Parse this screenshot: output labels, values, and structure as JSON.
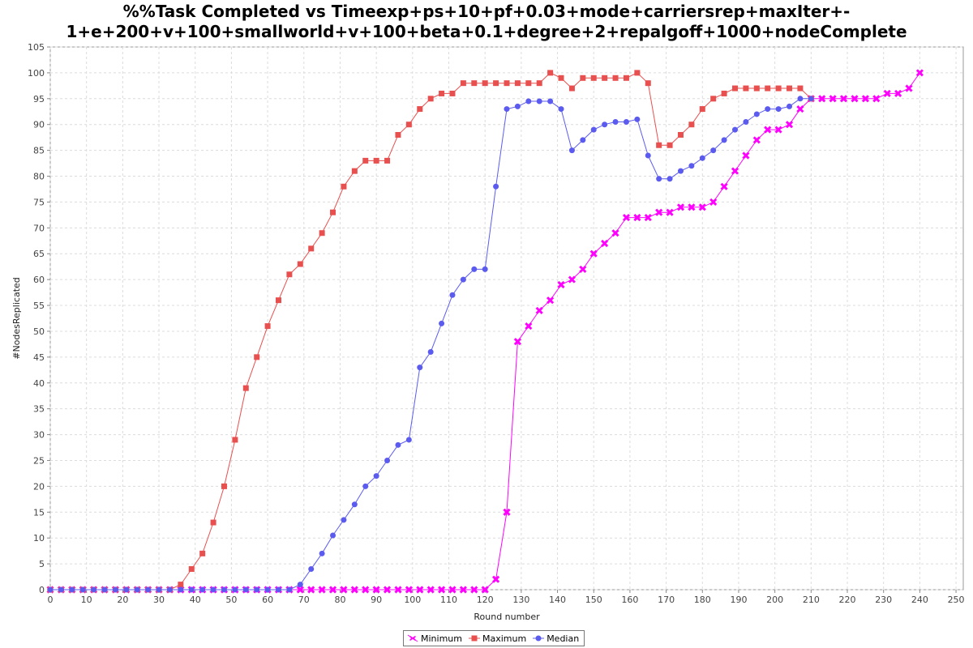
{
  "chart_data": {
    "type": "line",
    "title_line1": "%%Task Completed vs Timeexp+ps+10+pf+0.03+mode+carriersrep+maxIter+-",
    "title_line2": "1+e+200+v+100+smallworld+v+100+beta+0.1+degree+2+repalgoff+1000+nodeComplete",
    "xlabel": "Round number",
    "ylabel": "#NodesReplicated",
    "xlim": [
      0,
      252
    ],
    "ylim": [
      0,
      105
    ],
    "xticks": [
      0,
      10,
      20,
      30,
      40,
      50,
      60,
      70,
      80,
      90,
      100,
      110,
      120,
      130,
      140,
      150,
      160,
      170,
      180,
      190,
      200,
      210,
      220,
      230,
      240,
      250
    ],
    "yticks": [
      0,
      5,
      10,
      15,
      20,
      25,
      30,
      35,
      40,
      45,
      50,
      55,
      60,
      65,
      70,
      75,
      80,
      85,
      90,
      95,
      100,
      105
    ],
    "grid": true,
    "legend_position": "bottom-center",
    "series": [
      {
        "name": "Minimum",
        "color": "#ff00ff",
        "marker": "x",
        "points": [
          [
            0,
            0
          ],
          [
            3,
            0
          ],
          [
            6,
            0
          ],
          [
            9,
            0
          ],
          [
            12,
            0
          ],
          [
            15,
            0
          ],
          [
            18,
            0
          ],
          [
            21,
            0
          ],
          [
            24,
            0
          ],
          [
            27,
            0
          ],
          [
            30,
            0
          ],
          [
            33,
            0
          ],
          [
            36,
            0
          ],
          [
            39,
            0
          ],
          [
            42,
            0
          ],
          [
            45,
            0
          ],
          [
            48,
            0
          ],
          [
            51,
            0
          ],
          [
            54,
            0
          ],
          [
            57,
            0
          ],
          [
            60,
            0
          ],
          [
            63,
            0
          ],
          [
            66,
            0
          ],
          [
            69,
            0
          ],
          [
            72,
            0
          ],
          [
            75,
            0
          ],
          [
            78,
            0
          ],
          [
            81,
            0
          ],
          [
            84,
            0
          ],
          [
            87,
            0
          ],
          [
            90,
            0
          ],
          [
            93,
            0
          ],
          [
            96,
            0
          ],
          [
            99,
            0
          ],
          [
            102,
            0
          ],
          [
            105,
            0
          ],
          [
            108,
            0
          ],
          [
            111,
            0
          ],
          [
            114,
            0
          ],
          [
            117,
            0
          ],
          [
            120,
            0
          ],
          [
            123,
            2
          ],
          [
            126,
            15
          ],
          [
            129,
            48
          ],
          [
            132,
            51
          ],
          [
            135,
            54
          ],
          [
            138,
            56
          ],
          [
            141,
            59
          ],
          [
            144,
            60
          ],
          [
            147,
            62
          ],
          [
            150,
            65
          ],
          [
            153,
            67
          ],
          [
            156,
            69
          ],
          [
            159,
            72
          ],
          [
            162,
            72
          ],
          [
            165,
            72
          ],
          [
            168,
            73
          ],
          [
            171,
            73
          ],
          [
            174,
            74
          ],
          [
            177,
            74
          ],
          [
            180,
            74
          ],
          [
            183,
            75
          ],
          [
            186,
            78
          ],
          [
            189,
            81
          ],
          [
            192,
            84
          ],
          [
            195,
            87
          ],
          [
            198,
            89
          ],
          [
            201,
            89
          ],
          [
            204,
            90
          ],
          [
            207,
            93
          ],
          [
            210,
            95
          ],
          [
            213,
            95
          ],
          [
            216,
            95
          ],
          [
            219,
            95
          ],
          [
            222,
            95
          ],
          [
            225,
            95
          ],
          [
            228,
            95
          ],
          [
            231,
            96
          ],
          [
            234,
            96
          ],
          [
            237,
            97
          ],
          [
            240,
            100
          ]
        ]
      },
      {
        "name": "Maximum",
        "color": "#e8504f",
        "marker": "square",
        "points": [
          [
            0,
            0
          ],
          [
            3,
            0
          ],
          [
            6,
            0
          ],
          [
            9,
            0
          ],
          [
            12,
            0
          ],
          [
            15,
            0
          ],
          [
            18,
            0
          ],
          [
            21,
            0
          ],
          [
            24,
            0
          ],
          [
            27,
            0
          ],
          [
            30,
            0
          ],
          [
            33,
            0
          ],
          [
            36,
            1
          ],
          [
            39,
            4
          ],
          [
            42,
            7
          ],
          [
            45,
            13
          ],
          [
            48,
            20
          ],
          [
            51,
            29
          ],
          [
            54,
            39
          ],
          [
            57,
            45
          ],
          [
            60,
            51
          ],
          [
            63,
            56
          ],
          [
            66,
            61
          ],
          [
            69,
            63
          ],
          [
            72,
            66
          ],
          [
            75,
            69
          ],
          [
            78,
            73
          ],
          [
            81,
            78
          ],
          [
            84,
            81
          ],
          [
            87,
            83
          ],
          [
            90,
            83
          ],
          [
            93,
            83
          ],
          [
            96,
            88
          ],
          [
            99,
            90
          ],
          [
            102,
            93
          ],
          [
            105,
            95
          ],
          [
            108,
            96
          ],
          [
            111,
            96
          ],
          [
            114,
            98
          ],
          [
            117,
            98
          ],
          [
            120,
            98
          ],
          [
            123,
            98
          ],
          [
            126,
            98
          ],
          [
            129,
            98
          ],
          [
            132,
            98
          ],
          [
            135,
            98
          ],
          [
            138,
            100
          ],
          [
            141,
            99
          ],
          [
            144,
            97
          ],
          [
            147,
            99
          ],
          [
            150,
            99
          ],
          [
            153,
            99
          ],
          [
            156,
            99
          ],
          [
            159,
            99
          ],
          [
            162,
            100
          ],
          [
            165,
            98
          ],
          [
            168,
            86
          ],
          [
            171,
            86
          ],
          [
            174,
            88
          ],
          [
            177,
            90
          ],
          [
            180,
            93
          ],
          [
            183,
            95
          ],
          [
            186,
            96
          ],
          [
            189,
            97
          ],
          [
            192,
            97
          ],
          [
            195,
            97
          ],
          [
            198,
            97
          ],
          [
            201,
            97
          ],
          [
            204,
            97
          ],
          [
            207,
            97
          ],
          [
            210,
            95
          ]
        ]
      },
      {
        "name": "Median",
        "color": "#5b5bef",
        "marker": "circle",
        "points": [
          [
            0,
            0
          ],
          [
            3,
            0
          ],
          [
            6,
            0
          ],
          [
            9,
            0
          ],
          [
            12,
            0
          ],
          [
            15,
            0
          ],
          [
            18,
            0
          ],
          [
            21,
            0
          ],
          [
            24,
            0
          ],
          [
            27,
            0
          ],
          [
            30,
            0
          ],
          [
            33,
            0
          ],
          [
            36,
            0
          ],
          [
            39,
            0
          ],
          [
            42,
            0
          ],
          [
            45,
            0
          ],
          [
            48,
            0
          ],
          [
            51,
            0
          ],
          [
            54,
            0
          ],
          [
            57,
            0
          ],
          [
            60,
            0
          ],
          [
            63,
            0
          ],
          [
            66,
            0
          ],
          [
            69,
            1
          ],
          [
            72,
            4
          ],
          [
            75,
            7
          ],
          [
            78,
            10.5
          ],
          [
            81,
            13.5
          ],
          [
            84,
            16.5
          ],
          [
            87,
            20
          ],
          [
            90,
            22
          ],
          [
            93,
            25
          ],
          [
            96,
            28
          ],
          [
            99,
            29
          ],
          [
            102,
            43
          ],
          [
            105,
            46
          ],
          [
            108,
            51.5
          ],
          [
            111,
            57
          ],
          [
            114,
            60
          ],
          [
            117,
            62
          ],
          [
            120,
            62
          ],
          [
            123,
            78
          ],
          [
            126,
            93
          ],
          [
            129,
            93.5
          ],
          [
            132,
            94.5
          ],
          [
            135,
            94.5
          ],
          [
            138,
            94.5
          ],
          [
            141,
            93
          ],
          [
            144,
            85
          ],
          [
            147,
            87
          ],
          [
            150,
            89
          ],
          [
            153,
            90
          ],
          [
            156,
            90.5
          ],
          [
            159,
            90.5
          ],
          [
            162,
            91
          ],
          [
            165,
            84
          ],
          [
            168,
            79.5
          ],
          [
            171,
            79.5
          ],
          [
            174,
            81
          ],
          [
            177,
            82
          ],
          [
            180,
            83.5
          ],
          [
            183,
            85
          ],
          [
            186,
            87
          ],
          [
            189,
            89
          ],
          [
            192,
            90.5
          ],
          [
            195,
            92
          ],
          [
            198,
            93
          ],
          [
            201,
            93
          ],
          [
            204,
            93.5
          ],
          [
            207,
            95
          ],
          [
            210,
            95
          ]
        ]
      }
    ]
  }
}
